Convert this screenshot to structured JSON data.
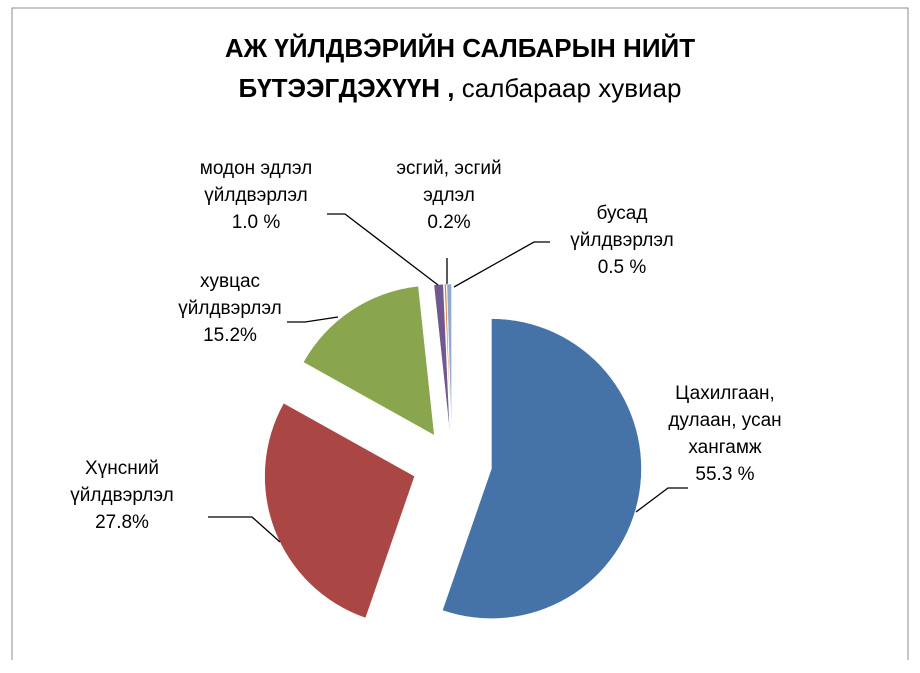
{
  "chart_data": {
    "type": "pie",
    "title": "АЖ ҮЙЛДВЭРИЙН САЛБАРЫН НИЙТ БҮТЭЭГДЭХҮҮН ,",
    "subtitle": "салбараар хувиар",
    "categories": [
      "Цахилгаан, дулаан, усан хангамж",
      "Хүнсний үйлдвэрлэл",
      "хувцас үйлдвэрлэл",
      "модон эдлэл үйлдвэрлэл",
      "эсгий, эсгий эдлэл",
      "бусад үйлдвэрлэл"
    ],
    "values": [
      55.3,
      27.8,
      15.2,
      1.0,
      0.2,
      0.5
    ],
    "value_labels": [
      "55.3 %",
      "27.8%",
      "15.2%",
      "1.0 %",
      "0.2%",
      "0.5 %"
    ],
    "colors": [
      "#4572a7",
      "#aa4643",
      "#89a54e",
      "#71588f",
      "#db843d",
      "#93a9cf"
    ]
  }
}
